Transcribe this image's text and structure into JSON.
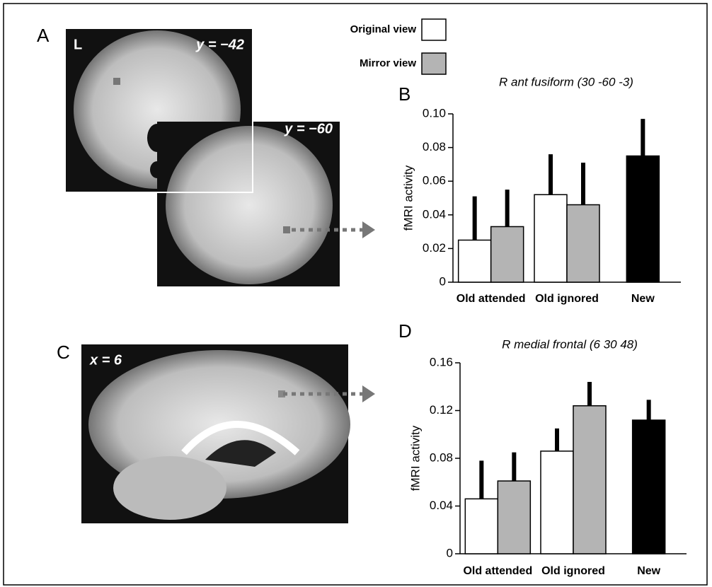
{
  "panels": {
    "a": "A",
    "b": "B",
    "c": "C",
    "d": "D"
  },
  "images": {
    "coronal1_side": "L",
    "coronal1_slice": "y = −42",
    "coronal2_slice": "y = −60",
    "sagittal_slice": "x =  6"
  },
  "chart_data": [
    {
      "type": "bar",
      "title": "R  ant fusiform (30 -60 -3)",
      "y_label": "fMRI activity",
      "categories": [
        "Old attended",
        "Old ignored",
        "New"
      ],
      "series": [
        {
          "name": "Original view",
          "color": "#ffffff",
          "values": [
            0.025,
            0.052,
            null
          ],
          "errors": [
            0.026,
            0.024,
            null
          ]
        },
        {
          "name": "Mirror view",
          "color": "#b4b4b4",
          "values": [
            0.033,
            0.046,
            null
          ],
          "errors": [
            0.022,
            0.025,
            null
          ]
        },
        {
          "color": "#000000",
          "values": [
            null,
            null,
            0.075
          ],
          "errors": [
            null,
            null,
            0.022
          ]
        }
      ],
      "ylim": [
        0,
        0.1
      ],
      "yticks": [
        0,
        0.02,
        0.04,
        0.06,
        0.08,
        {
          "value": 0.1,
          "label": "0.10"
        }
      ]
    },
    {
      "type": "bar",
      "title": "R  medial frontal (6 30 48)",
      "y_label": "fMRI activity",
      "categories": [
        "Old attended",
        "Old ignored",
        "New"
      ],
      "series": [
        {
          "color": "#ffffff",
          "values": [
            0.046,
            0.086,
            null
          ],
          "errors": [
            0.032,
            0.019,
            null
          ]
        },
        {
          "color": "#b4b4b4",
          "values": [
            0.061,
            0.124,
            null
          ],
          "errors": [
            0.024,
            0.02,
            null
          ]
        },
        {
          "color": "#000000",
          "values": [
            null,
            null,
            0.112
          ],
          "errors": [
            null,
            null,
            0.017
          ]
        }
      ],
      "ylim": [
        0,
        0.16
      ],
      "yticks": [
        0,
        0.04,
        0.08,
        0.12,
        0.16
      ]
    }
  ]
}
